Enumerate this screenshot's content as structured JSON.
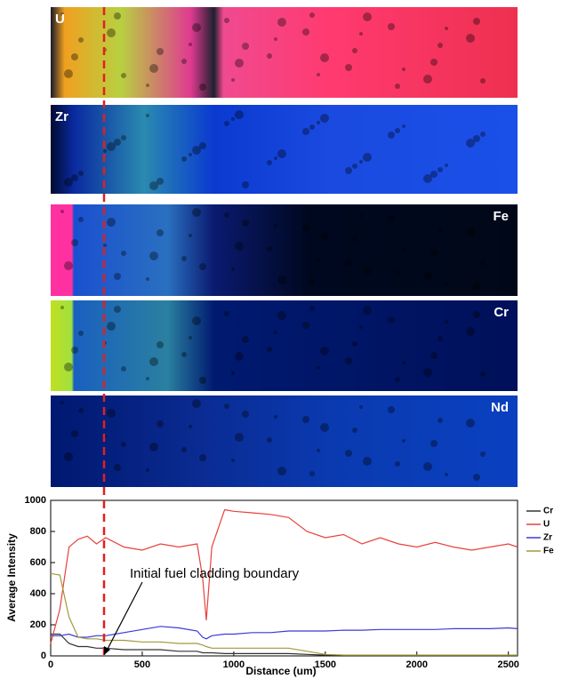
{
  "panels": [
    {
      "label": "U"
    },
    {
      "label": "Zr"
    },
    {
      "label": "Fe"
    },
    {
      "label": "Cr"
    },
    {
      "label": "Nd"
    }
  ],
  "chart_data": {
    "type": "line",
    "x_label": "Distance (um)",
    "y_label": "Average Intensity",
    "annotation": "Initial fuel cladding boundary",
    "x": [
      0,
      50,
      100,
      150,
      200,
      250,
      300,
      400,
      500,
      600,
      700,
      800,
      830,
      850,
      880,
      950,
      1000,
      1100,
      1200,
      1300,
      1400,
      1500,
      1600,
      1700,
      1800,
      1900,
      2000,
      2100,
      2200,
      2300,
      2400,
      2500,
      2550
    ],
    "series": [
      {
        "name": "Cr",
        "color": "#333333",
        "values": [
          140,
          140,
          80,
          60,
          60,
          50,
          50,
          40,
          40,
          40,
          30,
          30,
          20,
          20,
          20,
          15,
          15,
          15,
          15,
          15,
          10,
          5,
          5,
          5,
          5,
          5,
          5,
          5,
          5,
          5,
          5,
          5,
          5
        ]
      },
      {
        "name": "U",
        "color": "#e8413c",
        "values": [
          80,
          300,
          700,
          750,
          770,
          720,
          760,
          700,
          680,
          720,
          700,
          720,
          500,
          230,
          700,
          940,
          930,
          920,
          910,
          890,
          800,
          760,
          780,
          720,
          760,
          720,
          700,
          730,
          700,
          680,
          700,
          720,
          700
        ]
      },
      {
        "name": "Zr",
        "color": "#3a3ad6",
        "values": [
          130,
          130,
          140,
          120,
          120,
          130,
          130,
          150,
          170,
          190,
          180,
          160,
          120,
          110,
          130,
          140,
          140,
          150,
          150,
          160,
          160,
          160,
          165,
          165,
          170,
          170,
          170,
          170,
          175,
          175,
          175,
          180,
          175
        ]
      },
      {
        "name": "Fe",
        "color": "#a09a3a",
        "values": [
          530,
          520,
          250,
          120,
          110,
          110,
          100,
          100,
          90,
          90,
          80,
          80,
          70,
          60,
          50,
          50,
          50,
          50,
          50,
          50,
          30,
          10,
          5,
          5,
          5,
          5,
          5,
          5,
          5,
          5,
          5,
          5,
          5
        ]
      }
    ],
    "xlim": [
      0,
      2550
    ],
    "ylim": [
      0,
      1000
    ],
    "xticks": [
      0,
      500,
      1000,
      1500,
      2000,
      2500
    ],
    "yticks": [
      0,
      200,
      400,
      600,
      800,
      1000
    ],
    "legend": "right"
  }
}
